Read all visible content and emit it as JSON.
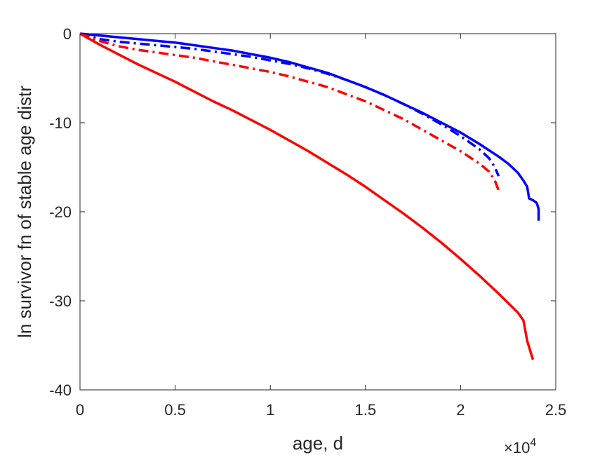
{
  "chart_data": {
    "type": "line",
    "title": "",
    "xlabel": "age, d",
    "ylabel": "ln survivor fn of stable age distr",
    "x_multiplier_base": "×10",
    "x_multiplier_exp": "4",
    "xlim": [
      0,
      25000
    ],
    "ylim": [
      -40,
      0
    ],
    "x_ticks": [
      0,
      5000,
      10000,
      15000,
      20000,
      25000
    ],
    "x_tick_labels": [
      "0",
      "0.5",
      "1",
      "1.5",
      "2",
      "2.5"
    ],
    "y_ticks": [
      0,
      -10,
      -20,
      -30,
      -40
    ],
    "y_tick_labels": [
      "0",
      "-10",
      "-20",
      "-30",
      "-40"
    ],
    "grid": false,
    "series": [
      {
        "color": "#0000ff",
        "style": "solid",
        "x": [
          0,
          1000,
          2000,
          3000,
          4000,
          5000,
          6000,
          7000,
          8000,
          9000,
          10000,
          11000,
          12000,
          13000,
          14000,
          15000,
          16000,
          17000,
          18000,
          19000,
          20000,
          21000,
          22000,
          22500,
          23000,
          23300,
          23500,
          23600,
          23800,
          24000,
          24100,
          24100
        ],
        "y": [
          0,
          -0.2,
          -0.4,
          -0.6,
          -0.8,
          -1.0,
          -1.3,
          -1.6,
          -1.9,
          -2.3,
          -2.7,
          -3.2,
          -3.8,
          -4.4,
          -5.2,
          -6.0,
          -6.9,
          -7.9,
          -8.9,
          -10.0,
          -11.1,
          -12.4,
          -13.8,
          -14.6,
          -15.6,
          -16.5,
          -17.2,
          -18.5,
          -18.7,
          -19.0,
          -19.7,
          -21.0
        ]
      },
      {
        "color": "#0000ff",
        "style": "dashdot",
        "x": [
          0,
          500,
          1000,
          2000,
          3000,
          4000,
          5000,
          6000,
          7000,
          8000,
          9000,
          10000,
          11000,
          12000,
          13000,
          14000,
          15000,
          16000,
          17000,
          18000,
          19000,
          20000,
          21000,
          21500,
          21800,
          22000
        ],
        "y": [
          0,
          -0.3,
          -0.6,
          -0.9,
          -1.1,
          -1.3,
          -1.5,
          -1.7,
          -2.0,
          -2.3,
          -2.6,
          -3.0,
          -3.4,
          -3.9,
          -4.5,
          -5.2,
          -6.0,
          -6.9,
          -7.9,
          -9.0,
          -10.2,
          -11.5,
          -13.0,
          -14.0,
          -15.0,
          -16.0
        ]
      },
      {
        "color": "#ff0000",
        "style": "dashdot",
        "x": [
          0,
          500,
          1000,
          2000,
          3000,
          4000,
          5000,
          6000,
          7000,
          8000,
          9000,
          10000,
          11000,
          12000,
          13000,
          14000,
          15000,
          16000,
          17000,
          18000,
          19000,
          20000,
          21000,
          21500,
          21800,
          22000
        ],
        "y": [
          0,
          -0.4,
          -0.8,
          -1.4,
          -1.8,
          -2.1,
          -2.4,
          -2.7,
          -3.1,
          -3.5,
          -3.9,
          -4.3,
          -4.8,
          -5.4,
          -6.0,
          -6.8,
          -7.6,
          -8.6,
          -9.6,
          -10.8,
          -12.0,
          -13.2,
          -14.6,
          -15.5,
          -16.5,
          -17.6
        ]
      },
      {
        "color": "#ff0000",
        "style": "solid",
        "x": [
          0,
          1000,
          2000,
          3000,
          4000,
          5000,
          6000,
          7000,
          8000,
          9000,
          10000,
          11000,
          12000,
          13000,
          14000,
          15000,
          16000,
          17000,
          18000,
          19000,
          20000,
          21000,
          22000,
          23000,
          23300,
          23500,
          23800
        ],
        "y": [
          0,
          -1.2,
          -2.3,
          -3.4,
          -4.4,
          -5.4,
          -6.5,
          -7.6,
          -8.6,
          -9.7,
          -10.8,
          -12.0,
          -13.2,
          -14.5,
          -15.8,
          -17.2,
          -18.7,
          -20.2,
          -21.8,
          -23.5,
          -25.3,
          -27.2,
          -29.2,
          -31.3,
          -32.2,
          -34.5,
          -36.6
        ]
      }
    ]
  }
}
